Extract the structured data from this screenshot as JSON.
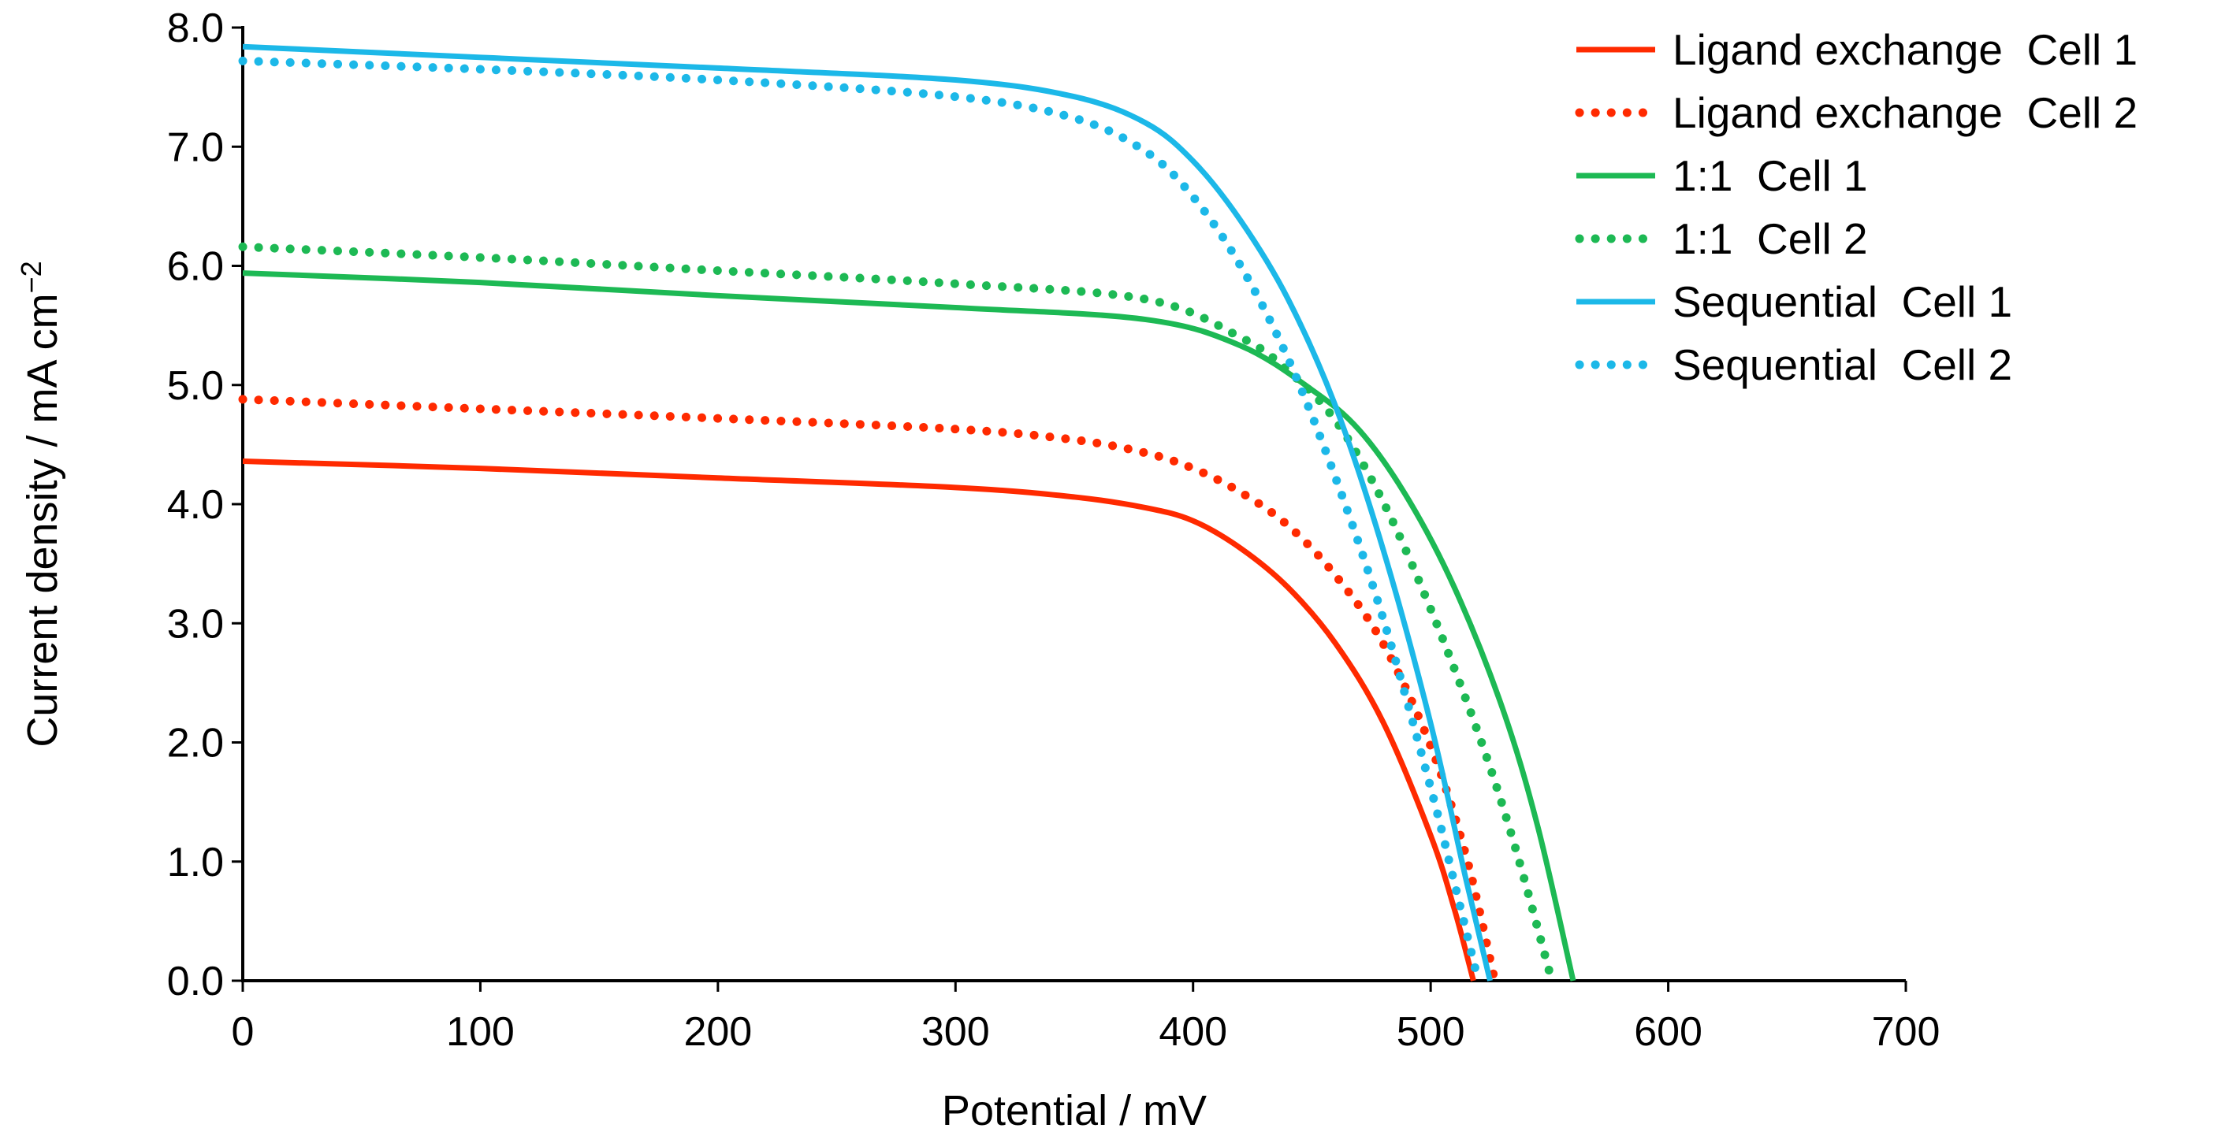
{
  "chart_data": {
    "type": "line",
    "title": "",
    "xlabel": "Potential / mV",
    "ylabel": "Current density / mA cm",
    "ylabel_sup": "−2",
    "xlim": [
      0,
      700
    ],
    "ylim": [
      0,
      8
    ],
    "grid": false,
    "legend_position": "top-right",
    "x_ticks": [
      0,
      100,
      200,
      300,
      400,
      500,
      600,
      700
    ],
    "x_tick_labels": [
      "0",
      "100",
      "200",
      "300",
      "400",
      "500",
      "600",
      "700"
    ],
    "y_ticks": [
      0,
      1,
      2,
      3,
      4,
      5,
      6,
      7,
      8
    ],
    "y_tick_labels": [
      "0.0",
      "1.0",
      "2.0",
      "3.0",
      "4.0",
      "5.0",
      "6.0",
      "7.0",
      "8.0"
    ],
    "series": [
      {
        "name": "Ligand exchange  Cell 1",
        "color": "#ff2a00",
        "style": "solid",
        "x": [
          0,
          100,
          200,
          300,
          350,
          380,
          400,
          420,
          440,
          460,
          480,
          500,
          510,
          518
        ],
        "y": [
          4.36,
          4.3,
          4.22,
          4.14,
          4.06,
          3.97,
          3.86,
          3.63,
          3.3,
          2.83,
          2.17,
          1.22,
          0.6,
          0.0
        ]
      },
      {
        "name": "Ligand exchange  Cell 2",
        "color": "#ff2a00",
        "style": "dotted",
        "x": [
          0,
          100,
          200,
          300,
          350,
          380,
          400,
          420,
          440,
          460,
          480,
          500,
          515,
          527
        ],
        "y": [
          4.88,
          4.8,
          4.72,
          4.63,
          4.54,
          4.43,
          4.3,
          4.1,
          3.82,
          3.4,
          2.83,
          1.97,
          1.04,
          0.0
        ]
      },
      {
        "name": "1:1  Cell 1",
        "color": "#1db954",
        "style": "solid",
        "x": [
          0,
          100,
          200,
          300,
          380,
          420,
          450,
          470,
          490,
          510,
          530,
          545,
          560
        ],
        "y": [
          5.94,
          5.86,
          5.75,
          5.65,
          5.55,
          5.33,
          4.96,
          4.62,
          4.06,
          3.3,
          2.3,
          1.3,
          0.0
        ]
      },
      {
        "name": "1:1  Cell 2",
        "color": "#1db954",
        "style": "dotted",
        "x": [
          0,
          100,
          200,
          300,
          380,
          420,
          440,
          460,
          480,
          500,
          520,
          535,
          551
        ],
        "y": [
          6.16,
          6.07,
          5.96,
          5.85,
          5.72,
          5.4,
          5.12,
          4.7,
          4.02,
          3.12,
          2.08,
          1.16,
          0.0
        ]
      },
      {
        "name": "Sequential  Cell 1",
        "color": "#1cb8e8",
        "style": "solid",
        "x": [
          0,
          100,
          200,
          300,
          350,
          380,
          400,
          420,
          440,
          460,
          480,
          500,
          515,
          525
        ],
        "y": [
          7.84,
          7.75,
          7.66,
          7.56,
          7.42,
          7.2,
          6.88,
          6.38,
          5.72,
          4.82,
          3.62,
          2.16,
          0.84,
          0.0
        ]
      },
      {
        "name": "Sequential  Cell 2",
        "color": "#1cb8e8",
        "style": "dotted",
        "x": [
          0,
          100,
          200,
          300,
          350,
          380,
          400,
          420,
          440,
          460,
          480,
          500,
          510,
          520
        ],
        "y": [
          7.72,
          7.65,
          7.56,
          7.42,
          7.24,
          6.96,
          6.58,
          6.0,
          5.22,
          4.22,
          3.04,
          1.62,
          0.82,
          0.0
        ]
      }
    ]
  }
}
